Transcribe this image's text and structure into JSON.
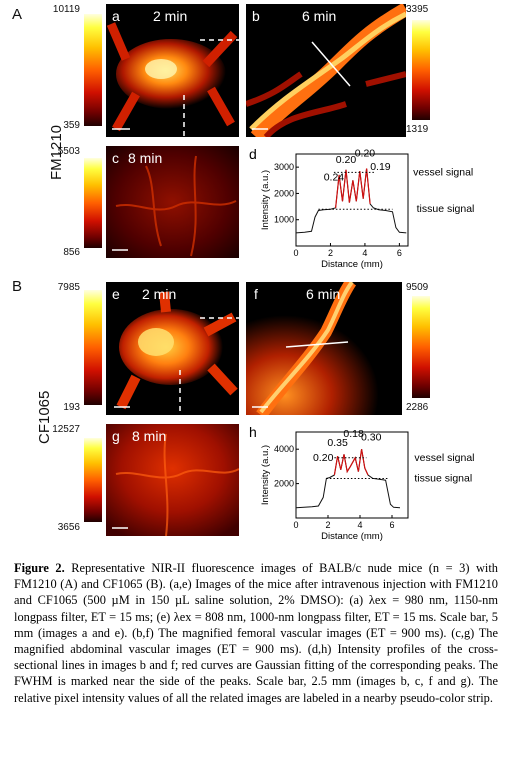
{
  "section_A": {
    "letter": "A",
    "probe": "FM1210",
    "cbar_a": {
      "max": "10119",
      "min": "359"
    },
    "cbar_b": {
      "max": "3395",
      "min": "1319"
    },
    "cbar_c": {
      "max": "5503",
      "min": "856"
    },
    "img_a": {
      "letter": "a",
      "time": "2 min"
    },
    "img_b": {
      "letter": "b",
      "time": "6 min"
    },
    "img_c": {
      "letter": "c",
      "time": "8 min"
    },
    "plot_d": {
      "letter": "d",
      "fwhm_labels": [
        "0.24",
        "0.20",
        "0.20",
        "0.19"
      ],
      "vessel": "vessel signal",
      "tissue": "tissue signal",
      "xlabel": "Distance (mm)",
      "ylabel": "Intensity (a.u.)",
      "yticks": [
        "1000",
        "2000",
        "3000"
      ],
      "xticks": [
        "0",
        "2",
        "4",
        "6"
      ]
    }
  },
  "section_B": {
    "letter": "B",
    "probe": "CF1065",
    "cbar_e": {
      "max": "7985",
      "min": "193"
    },
    "cbar_f": {
      "max": "9509",
      "min": "2286"
    },
    "cbar_g": {
      "max": "12527",
      "min": "3656"
    },
    "img_e": {
      "letter": "e",
      "time": "2 min"
    },
    "img_f": {
      "letter": "f",
      "time": "6 min"
    },
    "img_g": {
      "letter": "g",
      "time": "8 min"
    },
    "plot_h": {
      "letter": "h",
      "fwhm_labels": [
        "0.20",
        "0.35",
        "0.18",
        "0.30"
      ],
      "vessel": "vessel signal",
      "tissue": "tissue signal",
      "xlabel": "Distance (mm)",
      "ylabel": "Intensity (a.u.)",
      "yticks": [
        "2000",
        "4000"
      ],
      "xticks": [
        "0",
        "2",
        "4",
        "6"
      ]
    }
  },
  "chart_data": [
    {
      "type": "line",
      "panel": "d",
      "xlabel": "Distance (mm)",
      "ylabel": "Intensity (a.u.)",
      "xlim": [
        0,
        6.5
      ],
      "ylim": [
        0,
        3500
      ],
      "series": [
        {
          "x": [
            0.0,
            0.5,
            0.9,
            1.1,
            1.3,
            1.6,
            2.0,
            2.3,
            2.5,
            2.7,
            2.9,
            3.1,
            3.3,
            3.5,
            3.7,
            3.9,
            4.1,
            4.3,
            4.5,
            4.8,
            5.2,
            5.6,
            5.8,
            6.0,
            6.4
          ],
          "values": [
            500,
            520,
            560,
            1100,
            1350,
            1380,
            1400,
            1450,
            2700,
            1700,
            2900,
            1650,
            2500,
            1700,
            2850,
            1800,
            2950,
            1600,
            1450,
            1380,
            1350,
            1300,
            700,
            520,
            500
          ]
        }
      ],
      "annotations": [
        "0.24",
        "0.20",
        "0.20",
        "0.19",
        "vessel signal",
        "tissue signal"
      ]
    },
    {
      "type": "line",
      "panel": "h",
      "xlabel": "Distance (mm)",
      "ylabel": "Intensity (a.u.)",
      "xlim": [
        0,
        7
      ],
      "ylim": [
        0,
        5000
      ],
      "series": [
        {
          "x": [
            0.0,
            0.5,
            1.0,
            1.4,
            1.7,
            1.9,
            2.1,
            2.4,
            2.6,
            2.8,
            3.0,
            3.2,
            3.4,
            3.7,
            3.9,
            4.1,
            4.3,
            4.5,
            4.8,
            5.2,
            5.6,
            5.9,
            6.1,
            6.5
          ],
          "values": [
            600,
            620,
            650,
            700,
            1200,
            2300,
            2350,
            2500,
            3600,
            2800,
            3700,
            2700,
            3000,
            3500,
            2700,
            4000,
            2900,
            2500,
            2300,
            2250,
            2200,
            800,
            620,
            600
          ]
        }
      ],
      "annotations": [
        "0.20",
        "0.35",
        "0.18",
        "0.30",
        "vessel signal",
        "tissue signal"
      ]
    }
  ],
  "caption": {
    "bold": "Figure 2.",
    "text": " Representative NIR-II fluorescence images of BALB/c nude mice (n = 3) with FM1210 (A) and CF1065 (B). (a,e) Images of the mice after intravenous injection with FM1210 and CF1065 (500 µM in 150 µL saline solution, 2% DMSO): (a) λex = 980 nm, 1150-nm longpass filter, ET = 15 ms; (e) λex = 808 nm, 1000-nm longpass filter, ET = 15 ms. Scale bar, 5 mm (images a and e). (b,f) The magnified femoral vascular images (ET = 900 ms). (c,g) The magnified abdominal vascular images (ET = 900 ms). (d,h) Intensity profiles of the cross-sectional lines in images b and f; red curves are Gaussian fitting of the corresponding peaks. The FWHM is marked near the side of the peaks. Scale bar, 2.5 mm (images b, c, f and g). The relative pixel intensity values of all the related images are labeled in a nearby pseudo-color strip."
  }
}
